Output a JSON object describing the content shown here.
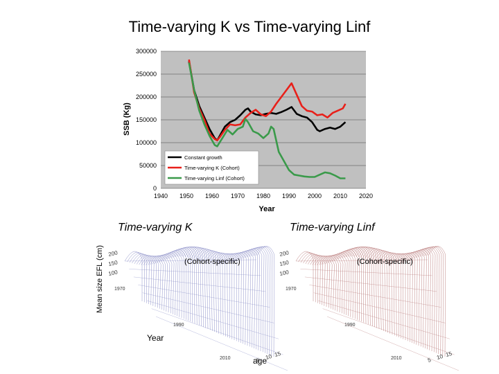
{
  "slide": {
    "title": "Time-varying K vs Time-varying Linf"
  },
  "chart_data": [
    {
      "type": "line",
      "title": "",
      "xlabel": "Year",
      "ylabel": "SSB (Kg)",
      "xlim": [
        1940,
        2020
      ],
      "ylim": [
        0,
        300000
      ],
      "xticks": [
        1940,
        1950,
        1960,
        1970,
        1980,
        1990,
        2000,
        2010,
        2020
      ],
      "yticks": [
        0,
        50000,
        100000,
        150000,
        200000,
        250000,
        300000
      ],
      "grid": true,
      "legend": "bottom-left",
      "series": [
        {
          "name": "Constant growth",
          "color": "#000000",
          "x": [
            1951,
            1953,
            1955,
            1957,
            1959,
            1961,
            1962,
            1963,
            1965,
            1967,
            1969,
            1971,
            1973,
            1974,
            1975,
            1977,
            1979,
            1981,
            1983,
            1985,
            1987,
            1989,
            1991,
            1993,
            1995,
            1997,
            1999,
            2001,
            2002,
            2004,
            2006,
            2008,
            2010,
            2012
          ],
          "y": [
            278000,
            215000,
            180000,
            155000,
            130000,
            110000,
            105000,
            115000,
            135000,
            145000,
            150000,
            160000,
            172000,
            175000,
            168000,
            162000,
            160000,
            163000,
            165000,
            163000,
            167000,
            172000,
            178000,
            163000,
            158000,
            155000,
            145000,
            128000,
            125000,
            130000,
            133000,
            130000,
            135000,
            145000
          ]
        },
        {
          "name": "Time-varying K (Cohort)",
          "color": "#e8201a",
          "x": [
            1951,
            1953,
            1955,
            1957,
            1959,
            1961,
            1962,
            1963,
            1965,
            1967,
            1969,
            1971,
            1973,
            1975,
            1977,
            1979,
            1981,
            1983,
            1985,
            1987,
            1989,
            1991,
            1993,
            1995,
            1997,
            1999,
            2001,
            2003,
            2005,
            2007,
            2009,
            2011,
            2012
          ],
          "y": [
            282000,
            210000,
            175000,
            150000,
            120000,
            108000,
            105000,
            112000,
            128000,
            140000,
            138000,
            140000,
            155000,
            165000,
            172000,
            162000,
            158000,
            168000,
            185000,
            200000,
            215000,
            230000,
            205000,
            180000,
            170000,
            168000,
            160000,
            162000,
            155000,
            165000,
            170000,
            175000,
            185000
          ]
        },
        {
          "name": "Time-varying Linf (Cohort)",
          "color": "#3a9a4a",
          "x": [
            1951,
            1953,
            1955,
            1957,
            1959,
            1961,
            1962,
            1964,
            1966,
            1968,
            1970,
            1972,
            1973,
            1974,
            1976,
            1978,
            1980,
            1982,
            1983,
            1984,
            1986,
            1988,
            1990,
            1992,
            1994,
            1996,
            1998,
            2000,
            2002,
            2004,
            2006,
            2008,
            2010,
            2012
          ],
          "y": [
            275000,
            215000,
            170000,
            140000,
            115000,
            95000,
            92000,
            110000,
            128000,
            118000,
            130000,
            135000,
            152000,
            145000,
            125000,
            120000,
            110000,
            120000,
            135000,
            130000,
            80000,
            60000,
            40000,
            30000,
            28000,
            26000,
            25000,
            25000,
            30000,
            35000,
            33000,
            28000,
            22000,
            22000
          ]
        }
      ]
    },
    {
      "type": "surface",
      "title": "Time-varying K",
      "subtitle": "(Cohort-specific)",
      "ylabel": "Mean size EFL (cm)",
      "xlabel": "Year",
      "agelabel": "age",
      "zticks": [
        100,
        150,
        200
      ],
      "yearticks": [
        1970,
        1990,
        2010
      ],
      "ageticks": [
        5,
        10,
        15
      ],
      "color": "#7b7fc0"
    },
    {
      "type": "surface",
      "title": "Time-varying Linf",
      "subtitle": "(Cohort-specific)",
      "zticks": [
        100,
        150,
        200
      ],
      "yearticks": [
        1970,
        1990,
        2010
      ],
      "ageticks": [
        5,
        10,
        15
      ],
      "color": "#b06a6a"
    }
  ]
}
